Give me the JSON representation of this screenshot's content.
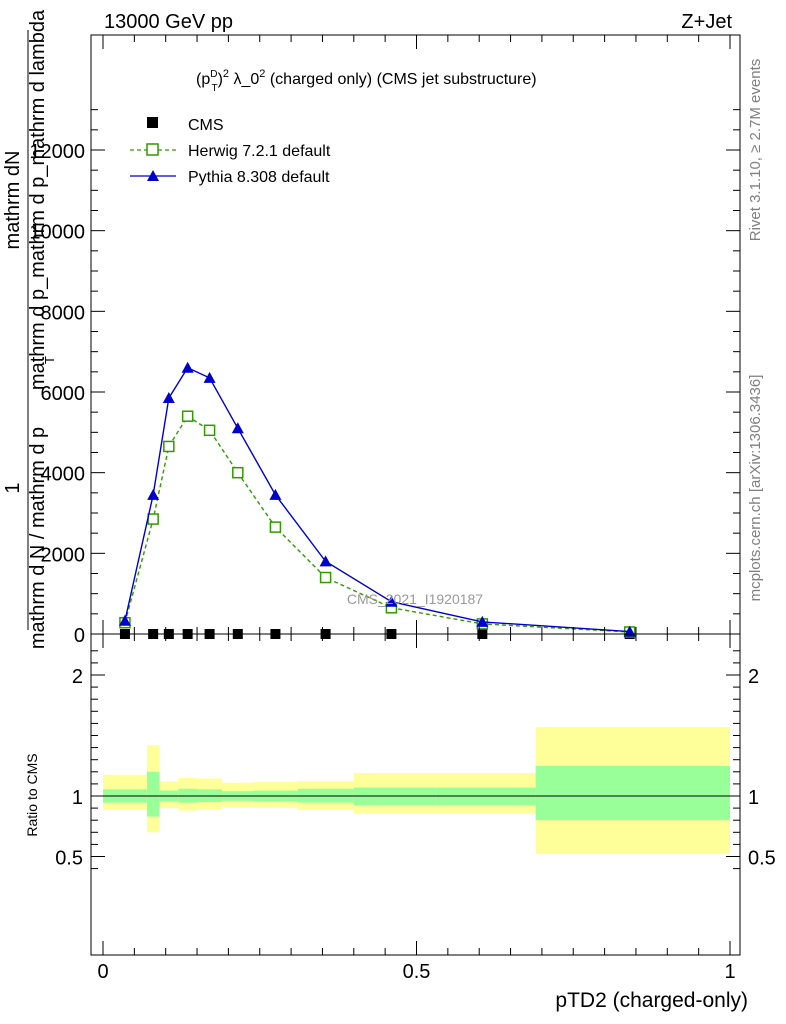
{
  "header": {
    "left": "13000 GeV pp",
    "right": "Z+Jet"
  },
  "side_labels": {
    "rivet": "Rivet 3.1.10, ≥ 2.7M events",
    "mcplots": "mcplots.cern.ch [arXiv:1306.3436]"
  },
  "chart_data": [
    {
      "type": "line",
      "title": "(p_T^D)^2 λ_0^2 (charged only) (CMS jet substructure)",
      "title_parts": {
        "base": "(p",
        "sub": "T",
        "sup": "D",
        "close": ")",
        "exp": "2",
        "mid": " λ_0",
        "exp2": "2",
        "rest": " (charged only) (CMS jet substructure)"
      },
      "ylabel_top": "mathrm dN",
      "ylabel_denominator_upper": "mathrm d p_mathrm d p_mathrm d lambda",
      "ylabel_denominator_suffix": "T",
      "ylabel_one": "1",
      "ylabel_bottom": "mathrm d N / mathrm d p",
      "watermark": "CMS_2021_I1920187",
      "xlim": [
        0,
        1
      ],
      "ylim": [
        0,
        13000
      ],
      "yticks": [
        0,
        2000,
        4000,
        6000,
        8000,
        10000,
        12000
      ],
      "ytick_labels": [
        "0",
        "2000",
        "4000",
        "6000",
        "8000",
        "10000",
        "12000"
      ],
      "legend_position": "top-left",
      "series": [
        {
          "name": "CMS",
          "marker": "square-filled",
          "color": "#000000",
          "x": [
            0.035,
            0.08,
            0.105,
            0.135,
            0.17,
            0.215,
            0.275,
            0.355,
            0.46,
            0.605,
            0.84
          ],
          "y": [
            0,
            0,
            0,
            0,
            0,
            0,
            0,
            0,
            0,
            0,
            0
          ]
        },
        {
          "name": "Herwig 7.2.1 default",
          "marker": "square-open",
          "line": "dashed",
          "color": "#339900",
          "x": [
            0.035,
            0.08,
            0.105,
            0.135,
            0.17,
            0.215,
            0.275,
            0.355,
            0.46,
            0.605,
            0.84
          ],
          "y": [
            280,
            2850,
            4650,
            5400,
            5050,
            4000,
            2650,
            1400,
            650,
            250,
            50
          ]
        },
        {
          "name": "Pythia 8.308 default",
          "marker": "triangle-filled",
          "line": "solid",
          "color": "#0000cc",
          "x": [
            0.035,
            0.08,
            0.105,
            0.135,
            0.17,
            0.215,
            0.275,
            0.355,
            0.46,
            0.605,
            0.84
          ],
          "y": [
            330,
            3450,
            5850,
            6600,
            6350,
            5100,
            3450,
            1800,
            800,
            300,
            60
          ]
        }
      ]
    },
    {
      "type": "area",
      "ylabel": "Ratio to CMS",
      "xlabel": "pTD2 (charged-only)",
      "xlim": [
        0,
        1
      ],
      "ylim": [
        0.35,
        2.3
      ],
      "xticks": [
        0,
        0.5,
        1
      ],
      "xtick_labels": [
        "0",
        "0.5",
        "1"
      ],
      "yticks": [
        0.5,
        1,
        2
      ],
      "ytick_labels": [
        "0.5",
        "1",
        "2"
      ],
      "bins": [
        {
          "lo": 0.0,
          "hi": 0.07,
          "stat": [
            0.945,
            1.055
          ],
          "total": [
            0.885,
            1.175
          ]
        },
        {
          "lo": 0.07,
          "hi": 0.09,
          "stat": [
            0.83,
            1.2
          ],
          "total": [
            0.7,
            1.42
          ]
        },
        {
          "lo": 0.09,
          "hi": 0.12,
          "stat": [
            0.955,
            1.045
          ],
          "total": [
            0.9,
            1.12
          ]
        },
        {
          "lo": 0.12,
          "hi": 0.15,
          "stat": [
            0.945,
            1.06
          ],
          "total": [
            0.88,
            1.15
          ]
        },
        {
          "lo": 0.15,
          "hi": 0.19,
          "stat": [
            0.95,
            1.055
          ],
          "total": [
            0.89,
            1.145
          ]
        },
        {
          "lo": 0.19,
          "hi": 0.24,
          "stat": [
            0.96,
            1.04
          ],
          "total": [
            0.91,
            1.11
          ]
        },
        {
          "lo": 0.24,
          "hi": 0.31,
          "stat": [
            0.955,
            1.045
          ],
          "total": [
            0.905,
            1.115
          ]
        },
        {
          "lo": 0.31,
          "hi": 0.4,
          "stat": [
            0.945,
            1.06
          ],
          "total": [
            0.885,
            1.125
          ]
        },
        {
          "lo": 0.4,
          "hi": 0.53,
          "stat": [
            0.925,
            1.07
          ],
          "total": [
            0.86,
            1.19
          ]
        },
        {
          "lo": 0.53,
          "hi": 0.69,
          "stat": [
            0.925,
            1.07
          ],
          "total": [
            0.86,
            1.19
          ]
        },
        {
          "lo": 0.69,
          "hi": 1.0,
          "stat": [
            0.8,
            1.25
          ],
          "total": [
            0.52,
            1.57
          ]
        }
      ],
      "reference_line": 1,
      "colors": {
        "stat": "#99ff99",
        "total": "#ffff99"
      }
    }
  ]
}
